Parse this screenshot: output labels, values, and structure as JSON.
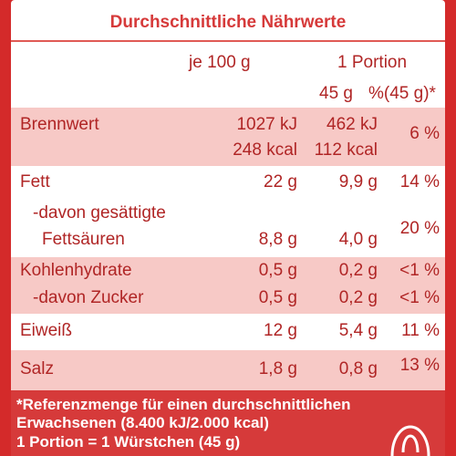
{
  "title": "Durchschnittliche Nährwerte",
  "header": {
    "per100": "je 100 g",
    "portion": "1 Portion",
    "portion_grams": "45 g",
    "percent": "%(45 g)*"
  },
  "rows": [
    {
      "label": "Brennwert",
      "per100": "1027 kJ",
      "portion": "462 kJ",
      "percent": "6 %",
      "label2": "",
      "per100_2": "248 kcal",
      "portion_2": "112 kcal",
      "percent_2": ""
    },
    {
      "label": "Fett",
      "per100": "22 g",
      "portion": "9,9 g",
      "percent": "14 %"
    },
    {
      "label": "-davon gesättigte",
      "label2": "Fettsäuren",
      "per100_2": "8,8 g",
      "portion_2": "4,0 g",
      "percent_2": "20 %"
    },
    {
      "label": "Kohlenhydrate",
      "per100": "0,5 g",
      "portion": "0,2 g",
      "percent": "<1 %"
    },
    {
      "label": "-davon Zucker",
      "per100": "0,5 g",
      "portion": "0,2 g",
      "percent": "<1 %"
    },
    {
      "label": "Eiweiß",
      "per100": "12 g",
      "portion": "5,4 g",
      "percent": "11 %"
    },
    {
      "label": "Salz",
      "per100": "1,8 g",
      "portion": "0,8 g",
      "percent": "13 %"
    }
  ],
  "footnote": {
    "line1": "*Referenzmenge  für einen durchschnittlichen",
    "line2": "Erwachsenen (8.400 kJ/2.000 kcal)",
    "line3": "1 Portion = 1 Würstchen (45 g)"
  },
  "colors": {
    "accent": "#d63a3a",
    "shade": "#f7c9c6",
    "text": "#b02525"
  },
  "icons": {
    "corner": "recycle-icon"
  }
}
